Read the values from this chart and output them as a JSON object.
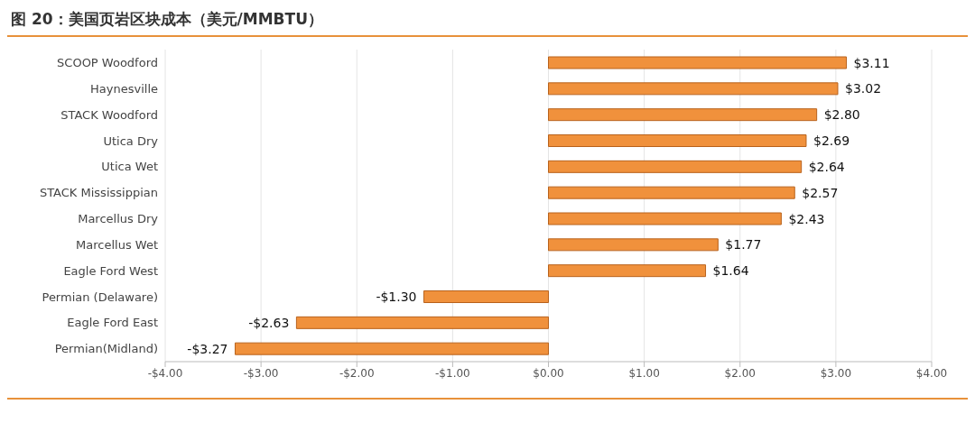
{
  "chart_data": {
    "type": "bar",
    "orientation": "horizontal",
    "title": "图 20：美国页岩区块成本（美元/MMBTU）",
    "categories": [
      "SCOOP Woodford",
      "Haynesville",
      "STACK Woodford",
      "Utica Dry",
      "Utica Wet",
      "STACK Mississippian",
      "Marcellus Dry",
      "Marcellus Wet",
      "Eagle Ford West",
      "Permian (Delaware)",
      "Eagle Ford East",
      "Permian(Midland)"
    ],
    "values": [
      3.11,
      3.02,
      2.8,
      2.69,
      2.64,
      2.57,
      2.43,
      1.77,
      1.64,
      -1.3,
      -2.63,
      -3.27
    ],
    "value_labels": [
      "$3.11",
      "$3.02",
      "$2.80",
      "$2.69",
      "$2.64",
      "$2.57",
      "$2.43",
      "$1.77",
      "$1.64",
      "-$1.30",
      "-$2.63",
      "-$3.27"
    ],
    "color": "#f0913c",
    "xlim": [
      -4,
      4
    ],
    "xticks": [
      {
        "value": -4,
        "label": "-$4.00"
      },
      {
        "value": -3,
        "label": "-$3.00"
      },
      {
        "value": -2,
        "label": "-$2.00"
      },
      {
        "value": -1,
        "label": "-$1.00"
      },
      {
        "value": 0,
        "label": "$0.00"
      },
      {
        "value": 1,
        "label": "$1.00"
      },
      {
        "value": 2,
        "label": "$2.00"
      },
      {
        "value": 3,
        "label": "$3.00"
      },
      {
        "value": 4,
        "label": "$4.00"
      }
    ],
    "grid": "x",
    "legend": false
  }
}
